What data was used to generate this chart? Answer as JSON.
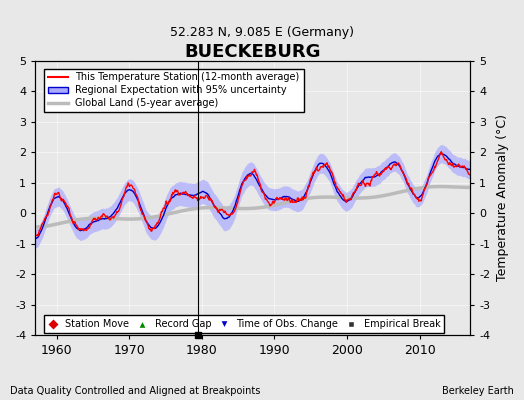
{
  "title": "BUECKEBURG",
  "subtitle": "52.283 N, 9.085 E (Germany)",
  "ylabel": "Temperature Anomaly (°C)",
  "xlabel_left": "Data Quality Controlled and Aligned at Breakpoints",
  "xlabel_right": "Berkeley Earth",
  "ylim": [
    -4,
    5
  ],
  "xlim": [
    1957,
    2017
  ],
  "xticks": [
    1960,
    1970,
    1980,
    1990,
    2000,
    2010
  ],
  "yticks": [
    -4,
    -3,
    -2,
    -1,
    0,
    1,
    2,
    3,
    4,
    5
  ],
  "bg_color": "#e8e8e8",
  "plot_bg_color": "#e8e8e8",
  "station_color": "#ff0000",
  "regional_color": "#0000cc",
  "regional_fill_color": "#aaaaff",
  "global_color": "#bbbbbb",
  "legend_items": [
    {
      "label": "This Temperature Station (12-month average)",
      "color": "#ff0000",
      "lw": 1.5
    },
    {
      "label": "Regional Expectation with 95% uncertainty",
      "color": "#0000cc",
      "lw": 1.5
    },
    {
      "label": "Global Land (5-year average)",
      "color": "#bbbbbb",
      "lw": 2.5
    }
  ],
  "marker_items": [
    {
      "label": "Station Move",
      "color": "#dd0000",
      "marker": "D",
      "ms": 6
    },
    {
      "label": "Record Gap",
      "color": "#008800",
      "marker": "^",
      "ms": 6
    },
    {
      "label": "Time of Obs. Change",
      "color": "#0000cc",
      "marker": "v",
      "ms": 6
    },
    {
      "label": "Empirical Break",
      "color": "#333333",
      "marker": "s",
      "ms": 5
    }
  ],
  "empirical_break_year": 1979.5,
  "seed": 42
}
